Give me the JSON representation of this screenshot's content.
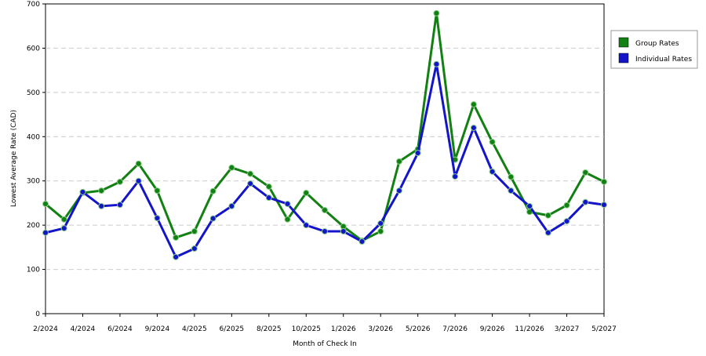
{
  "chart_data": {
    "type": "line",
    "x_label": "Month of Check In",
    "y_label": "Lowest Average Rate (CAD)",
    "categories": [
      "2/2024",
      null,
      "4/2024",
      null,
      "6/2024",
      null,
      "9/2024",
      null,
      "4/2025",
      null,
      "6/2025",
      null,
      "8/2025",
      null,
      "10/2025",
      null,
      "1/2026",
      null,
      "3/2026",
      null,
      "5/2026",
      null,
      "7/2026",
      null,
      "9/2026",
      null,
      "11/2026",
      null,
      "3/2027",
      null,
      "5/2027"
    ],
    "series": [
      {
        "name": "Group Rates",
        "color": "#138013",
        "values": [
          248,
          213,
          273,
          278,
          298,
          339,
          278,
          172,
          186,
          277,
          330,
          316,
          287,
          213,
          273,
          234,
          197,
          165,
          186,
          344,
          372,
          679,
          348,
          473,
          388,
          309,
          230,
          222,
          245,
          319,
          298
        ]
      },
      {
        "name": "Individual Rates",
        "color": "#1414c8",
        "values": [
          183,
          193,
          275,
          243,
          246,
          300,
          216,
          128,
          147,
          215,
          243,
          294,
          262,
          248,
          200,
          186,
          186,
          163,
          204,
          278,
          363,
          564,
          310,
          420,
          321,
          278,
          243,
          183,
          209,
          252,
          246
        ]
      }
    ],
    "ylim": [
      0,
      700
    ],
    "yticks": [
      0,
      100,
      200,
      300,
      400,
      500,
      600,
      700
    ],
    "grid": true,
    "legend": "right"
  }
}
